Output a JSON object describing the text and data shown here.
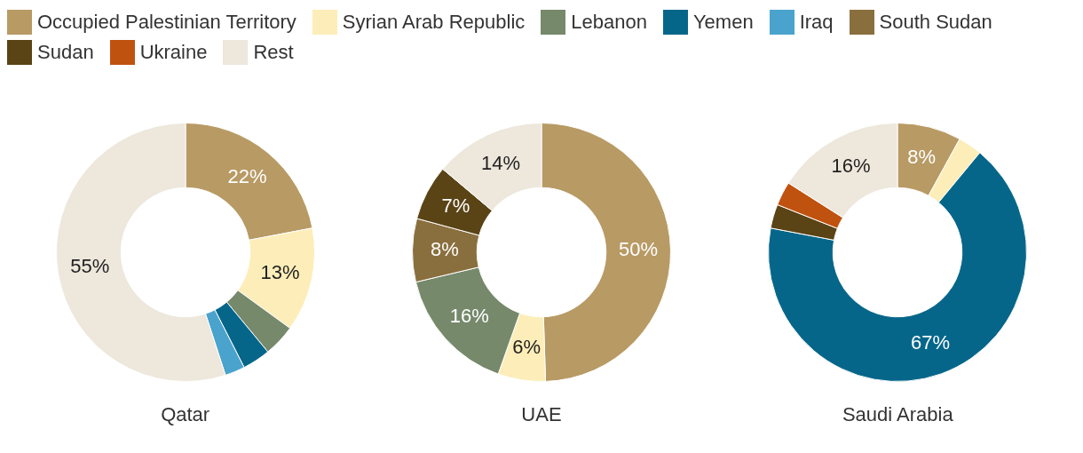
{
  "chart_data": [
    {
      "type": "donut",
      "title": "Qatar",
      "legend": "top",
      "categories": [
        "Occupied Palestinian Territory",
        "Syrian Arab Republic",
        "Lebanon",
        "Yemen",
        "Iraq",
        "South Sudan",
        "Sudan",
        "Ukraine",
        "Rest"
      ],
      "values": [
        22,
        13,
        4,
        3.5,
        2.5,
        null,
        null,
        null,
        55
      ],
      "value_labels": [
        "22%",
        "13%",
        null,
        null,
        null,
        null,
        null,
        null,
        "55%"
      ],
      "colors": [
        "#b89a64",
        "#fdedb8",
        "#76896b",
        "#06668a",
        "#4aa3cd",
        "#8a6f3e",
        "#5a4416",
        "#c0520f",
        "#ede7dc"
      ]
    },
    {
      "type": "donut",
      "title": "UAE",
      "categories": [
        null,
        null,
        null,
        null,
        null,
        null,
        null,
        null,
        null
      ],
      "values": [
        50,
        6,
        16,
        null,
        null,
        8,
        7,
        null,
        14
      ],
      "value_labels": [
        "50%",
        "6%",
        "16%",
        null,
        null,
        "8%",
        "7%",
        null,
        "14%"
      ],
      "colors": [
        "#b89a64",
        "#fdedb8",
        "#76896b",
        "#06668a",
        "#4aa3cd",
        "#8a6f3e",
        "#5a4416",
        "#c0520f",
        "#ede7dc"
      ]
    },
    {
      "type": "donut",
      "title": "Saudi Arabia",
      "categories": [
        null,
        null,
        null,
        null,
        null,
        null,
        null,
        null,
        null
      ],
      "values": [
        8,
        3,
        null,
        67,
        null,
        null,
        3,
        3,
        16
      ],
      "value_labels": [
        "8%",
        null,
        null,
        "67%",
        null,
        null,
        null,
        null,
        "16%"
      ],
      "colors": [
        "#b89a64",
        "#fdedb8",
        "#76896b",
        "#06668a",
        "#4aa3cd",
        "#8a6f3e",
        "#5a4416",
        "#c0520f",
        "#ede7dc"
      ]
    }
  ]
}
